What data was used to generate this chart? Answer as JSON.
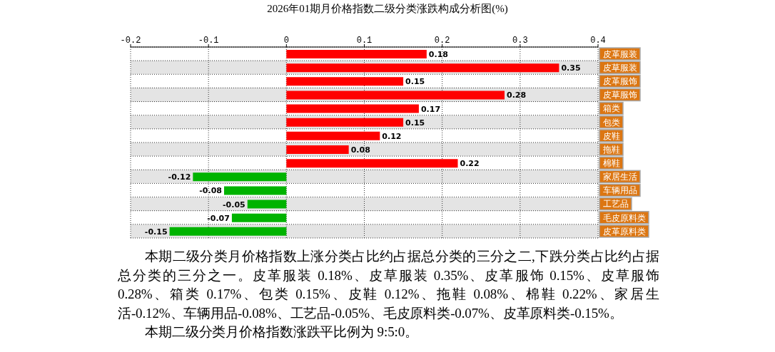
{
  "chart_data": {
    "type": "bar",
    "orientation": "horizontal",
    "title": "2026年01期月价格指数二级分类涨跌构成分析图(%)",
    "categories": [
      "皮革服装",
      "皮草服装",
      "皮革服饰",
      "皮草服饰",
      "箱类",
      "包类",
      "皮鞋",
      "拖鞋",
      "棉鞋",
      "家居生活",
      "车辆用品",
      "工艺品",
      "毛皮原料类",
      "皮革原料类"
    ],
    "values": [
      0.18,
      0.35,
      0.15,
      0.28,
      0.17,
      0.15,
      0.12,
      0.08,
      0.22,
      -0.12,
      -0.08,
      -0.05,
      -0.07,
      -0.15
    ],
    "colors": [
      "#ff0000",
      "#ff0000",
      "#ff0000",
      "#ff0000",
      "#ff0000",
      "#ff0000",
      "#ff0000",
      "#ff0000",
      "#ff0000",
      "#00b300",
      "#00b300",
      "#00b300",
      "#00b300",
      "#00b300"
    ],
    "xlim": [
      -0.2,
      0.4
    ],
    "xticks": [
      -0.2,
      -0.1,
      0,
      0.1,
      0.2,
      0.3,
      0.4
    ],
    "grid": true,
    "data_labels": true,
    "annotations": [
      "本期二级分类月价格指数上涨分类占比约占据总分类的三分之二,下跌分类占比约占据总分类的三分之一。皮革服装 0.18%、皮草服装 0.35%、皮革服饰 0.15%、皮草服饰 0.28%、箱类 0.17%、包类 0.15%、皮鞋 0.12%、拖鞋 0.08%、棉鞋 0.22%、家居生活-0.12%、车辆用品-0.08%、工艺品-0.05%、毛皮原料类-0.07%、皮革原料类-0.15%。",
      "本期二级分类月价格指数涨跌平比例为 9:5:0。"
    ]
  }
}
